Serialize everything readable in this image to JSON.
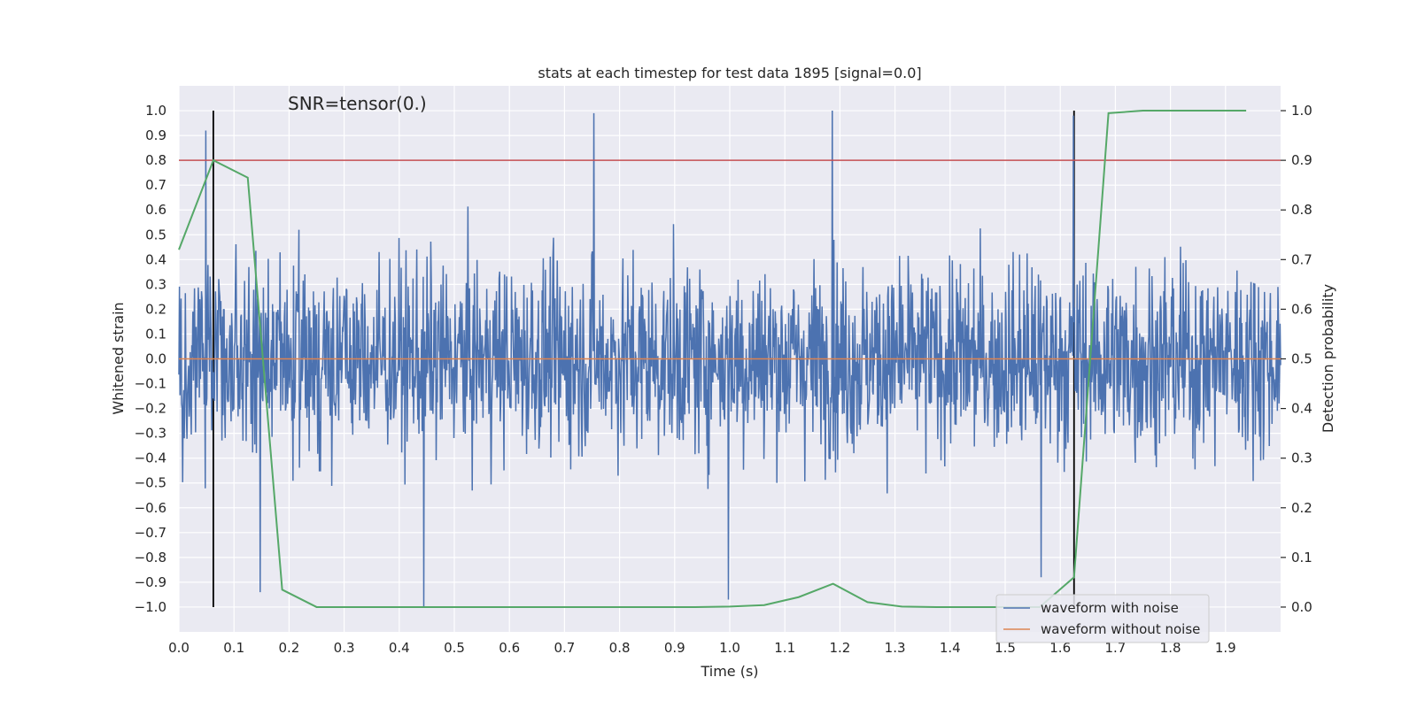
{
  "chart_data": {
    "type": "line",
    "title": "stats at each timestep for test data 1895 [signal=0.0]",
    "annotation": "SNR=tensor(0.)",
    "xlabel": "Time (s)",
    "ylabel_left": "Whitened strain",
    "ylabel_right": "Detection probability",
    "xlim": [
      0.0,
      2.0
    ],
    "ylim_left": [
      -1.1,
      1.1
    ],
    "ylim_right": [
      -0.05,
      1.05
    ],
    "x_ticks": [
      "0.0",
      "0.1",
      "0.2",
      "0.3",
      "0.4",
      "0.5",
      "0.6",
      "0.7",
      "0.8",
      "0.9",
      "1.0",
      "1.1",
      "1.2",
      "1.3",
      "1.4",
      "1.5",
      "1.6",
      "1.7",
      "1.8",
      "1.9"
    ],
    "y_ticks_left": [
      "1.0",
      "0.9",
      "0.8",
      "0.7",
      "0.6",
      "0.5",
      "0.4",
      "0.3",
      "0.2",
      "0.1",
      "0.0",
      "−0.1",
      "−0.2",
      "−0.3",
      "−0.4",
      "−0.5",
      "−0.6",
      "−0.7",
      "−0.8",
      "−0.9",
      "−1.0"
    ],
    "y_ticks_right": [
      "1.0",
      "0.9",
      "0.8",
      "0.7",
      "0.6",
      "0.5",
      "0.4",
      "0.3",
      "0.2",
      "0.1",
      "0.0"
    ],
    "grid": true,
    "legend_position": "bottom-right",
    "series": [
      {
        "name": "waveform with noise",
        "color": "#4c72b0",
        "axis": "left",
        "description": "whitened noisy strain, approx 2048 samples over 2 s, range about -1 to 1",
        "n_samples": 2048,
        "peaks": [
          {
            "x": 0.049,
            "y": 0.92
          },
          {
            "x": 0.445,
            "y": -1.0
          },
          {
            "x": 0.753,
            "y": 0.99
          },
          {
            "x": 1.186,
            "y": 1.0
          },
          {
            "x": 0.998,
            "y": -0.97
          },
          {
            "x": 1.624,
            "y": 0.98
          },
          {
            "x": 1.565,
            "y": -0.88
          },
          {
            "x": 0.148,
            "y": -0.94
          }
        ]
      },
      {
        "name": "waveform without noise",
        "color": "#dd8452",
        "axis": "left",
        "x": [
          0.0,
          2.0
        ],
        "values": [
          0.0,
          0.0
        ]
      },
      {
        "name": "detection probability",
        "color": "#55a868",
        "axis": "right",
        "x": [
          0.0,
          0.0625,
          0.125,
          0.1875,
          0.25,
          0.3125,
          0.375,
          0.4375,
          0.5,
          0.5625,
          0.625,
          0.6875,
          0.75,
          0.8125,
          0.875,
          0.9375,
          1.0,
          1.0625,
          1.125,
          1.1875,
          1.25,
          1.3125,
          1.375,
          1.4375,
          1.5,
          1.5625,
          1.625,
          1.6875,
          1.75,
          1.8125,
          1.875,
          1.9375
        ],
        "values": [
          0.72,
          0.9,
          0.865,
          0.035,
          0.0,
          0.0,
          0.0,
          0.0,
          0.0,
          0.0,
          0.0,
          0.0,
          0.0,
          0.0,
          0.0,
          0.0,
          0.001,
          0.004,
          0.02,
          0.047,
          0.01,
          0.001,
          0.0,
          0.0,
          0.0,
          0.0,
          0.06,
          0.995,
          1.0,
          1.0,
          1.0,
          1.0
        ]
      }
    ],
    "threshold": {
      "value": 0.9,
      "axis": "right",
      "color": "#c44e52"
    },
    "vertical_markers": [
      {
        "x": 0.0625,
        "color": "#000000"
      },
      {
        "x": 1.625,
        "color": "#000000"
      }
    ],
    "legend": [
      {
        "label": "waveform with noise",
        "color": "#4c72b0"
      },
      {
        "label": "waveform without noise",
        "color": "#dd8452"
      }
    ]
  }
}
